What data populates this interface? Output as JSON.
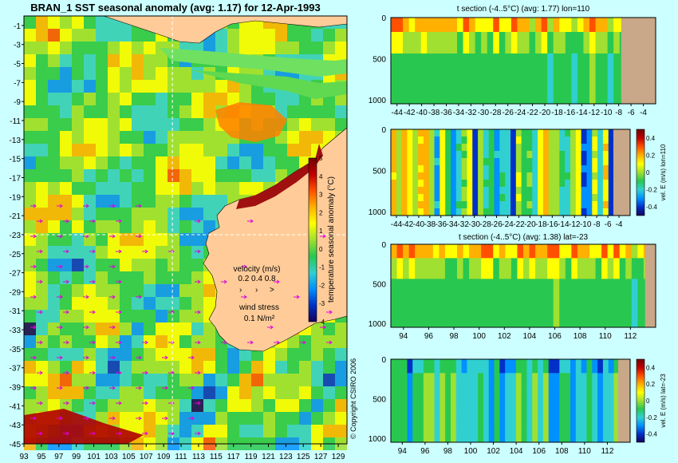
{
  "colors": {
    "background": "#ccffff",
    "land": "#ffcc99",
    "section_land": "#c8a888",
    "arrow": "#e000e0",
    "grid": "#ffffff"
  },
  "colorscale": [
    "#14005a",
    "#0030c8",
    "#0090ff",
    "#30d0d0",
    "#28c850",
    "#a0e030",
    "#ffff00",
    "#ffb000",
    "#ff5000",
    "#c00000",
    "#700000"
  ],
  "chart_data": [
    {
      "type": "heatmap",
      "id": "map",
      "title": "BRAN_1 SST seasonal anomaly (avg: 1.17) for 12-Apr-1993",
      "x_ticks": [
        "93",
        "95",
        "97",
        "99",
        "101",
        "103",
        "105",
        "107",
        "109",
        "111",
        "113",
        "115",
        "117",
        "119",
        "121",
        "123",
        "125",
        "127",
        "129"
      ],
      "y_ticks": [
        "-1",
        "-3",
        "-5",
        "-7",
        "-9",
        "-11",
        "-13",
        "-15",
        "-17",
        "-19",
        "-21",
        "-23",
        "-25",
        "-27",
        "-29",
        "-31",
        "-33",
        "-35",
        "-37",
        "-39",
        "-41",
        "-43",
        "-45"
      ],
      "xlim": [
        93,
        130
      ],
      "ylim": [
        -45,
        0
      ],
      "section_lon": 110,
      "section_lat": -23,
      "colorbar": {
        "label": "temperature seasonal anomaly (°C)",
        "ticks": [
          "5",
          "4",
          "3",
          "2",
          "1",
          "0",
          "-1",
          "-2",
          "-3",
          "-4"
        ],
        "range": [
          -4,
          5
        ]
      },
      "velocity_legend": {
        "title": "velocity (m/s)",
        "values": "0.2 0.4 0.8"
      },
      "wind_legend": {
        "title": "wind stress",
        "value": "0.1 N/m²"
      },
      "copyright": "© Copyright CSIRO 2006"
    },
    {
      "type": "heatmap",
      "id": "t_lon",
      "title": "t section (-4..5°C) (avg: 1.77) lon=110",
      "x_ticks": [
        "-44",
        "-42",
        "-40",
        "-38",
        "-36",
        "-34",
        "-32",
        "-30",
        "-28",
        "-26",
        "-24",
        "-22",
        "-20",
        "-18",
        "-16",
        "-14",
        "-12",
        "-10",
        "-8",
        "-6",
        "-4"
      ],
      "y_ticks": [
        "0",
        "500",
        "1000"
      ],
      "xlim": [
        -45,
        -2
      ],
      "ylim": [
        1050,
        0
      ]
    },
    {
      "type": "heatmap",
      "id": "v_lon",
      "title": "",
      "x_ticks": [
        "-44",
        "-42",
        "-40",
        "-38",
        "-36",
        "-34",
        "-32",
        "-30",
        "-28",
        "-26",
        "-24",
        "-22",
        "-20",
        "-18",
        "-16",
        "-14",
        "-12",
        "-10",
        "-8",
        "-6",
        "-4"
      ],
      "y_ticks": [
        "0",
        "500",
        "1000"
      ],
      "xlim": [
        -45,
        -2
      ],
      "ylim": [
        1050,
        0
      ],
      "colorbar": {
        "label": "vel. E (m/s) lon=110",
        "ticks": [
          "0.4",
          "0.2",
          "0",
          "-0.2",
          "-0.4"
        ],
        "range": [
          -0.5,
          0.5
        ]
      }
    },
    {
      "type": "heatmap",
      "id": "t_lat",
      "title": "t section (-4..5°C) (avg: 1.38) lat=-23",
      "x_ticks": [
        "94",
        "96",
        "98",
        "100",
        "102",
        "104",
        "106",
        "108",
        "110",
        "112"
      ],
      "y_ticks": [
        "0",
        "500",
        "1000"
      ],
      "xlim": [
        93,
        114
      ],
      "ylim": [
        1050,
        0
      ]
    },
    {
      "type": "heatmap",
      "id": "v_lat",
      "title": "",
      "x_ticks": [
        "94",
        "96",
        "98",
        "100",
        "102",
        "104",
        "106",
        "108",
        "110",
        "112"
      ],
      "y_ticks": [
        "0",
        "500",
        "1000"
      ],
      "xlim": [
        93,
        114
      ],
      "ylim": [
        1050,
        0
      ],
      "colorbar": {
        "label": "vel. E (m/s) lat=-23",
        "ticks": [
          "0.4",
          "0.2",
          "0",
          "-0.2",
          "-0.4"
        ],
        "range": [
          -0.5,
          0.5
        ]
      }
    }
  ]
}
